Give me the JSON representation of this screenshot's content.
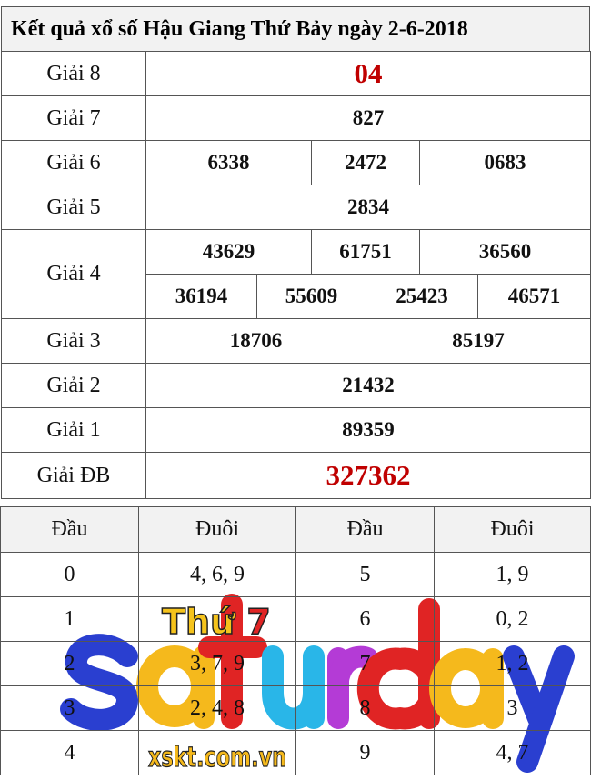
{
  "title": "Kết quả xổ số Hậu Giang Thứ Bảy ngày 2-6-2018",
  "prizes": {
    "g8": {
      "label": "Giải 8",
      "values": [
        "04"
      ]
    },
    "g7": {
      "label": "Giải 7",
      "values": [
        "827"
      ]
    },
    "g6": {
      "label": "Giải 6",
      "values": [
        "6338",
        "2472",
        "0683"
      ]
    },
    "g5": {
      "label": "Giải 5",
      "values": [
        "2834"
      ]
    },
    "g4": {
      "label": "Giải 4",
      "values": [
        "43629",
        "61751",
        "36560",
        "36194",
        "55609",
        "25423",
        "46571"
      ]
    },
    "g3": {
      "label": "Giải 3",
      "values": [
        "18706",
        "85197"
      ]
    },
    "g2": {
      "label": "Giải 2",
      "values": [
        "21432"
      ]
    },
    "g1": {
      "label": "Giải 1",
      "values": [
        "89359"
      ]
    },
    "gdb": {
      "label": "Giải ĐB",
      "values": [
        "327362"
      ]
    }
  },
  "loto": {
    "headers": [
      "Đầu",
      "Đuôi",
      "Đầu",
      "Đuôi"
    ],
    "rows": [
      [
        "0",
        "4, 6, 9",
        "5",
        "1, 9"
      ],
      [
        "1",
        "",
        "6",
        "0, 2"
      ],
      [
        "2",
        "3, 7, 9",
        "7",
        "1, 2"
      ],
      [
        "3",
        "2, 4, 8",
        "8",
        "3"
      ],
      [
        "4",
        "",
        "9",
        "4, 7"
      ]
    ]
  },
  "overlay": {
    "word": "saturday",
    "badge_text": "Thứ",
    "badge_num": "7",
    "site": "xskt.com.vn",
    "colors": [
      "#2a3fd0",
      "#f5b91c",
      "#e02424",
      "#29b6e8",
      "#b43bd6",
      "#e02424",
      "#f5b91c",
      "#2a3fd0"
    ]
  },
  "accent": "#c00000"
}
